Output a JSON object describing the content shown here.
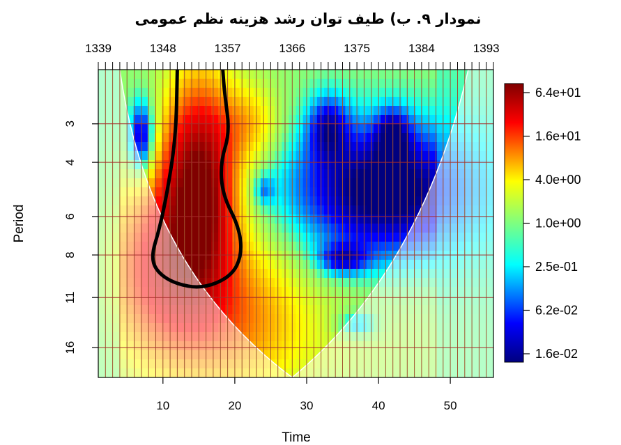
{
  "chart_data": {
    "type": "heatmap",
    "title": "نمودار ۹. ب) طیف توان رشد هزینه نظم عمومی",
    "xlabel": "Time",
    "ylabel": "Period",
    "x_ticks": [
      10,
      20,
      30,
      40,
      50
    ],
    "x_range": [
      1,
      56
    ],
    "top_ticks": [
      "1339",
      "1348",
      "1357",
      "1366",
      "1375",
      "1384",
      "1393"
    ],
    "top_tick_x": [
      1,
      10,
      19,
      28,
      37,
      46,
      55
    ],
    "y_ticks": [
      "3",
      "4",
      "6",
      "8",
      "11",
      "16"
    ],
    "y_tick_values": [
      3,
      4,
      6,
      8,
      11,
      16
    ],
    "y_range": [
      2,
      20
    ],
    "y_scale": "log2-reversed",
    "legend_labels": [
      "6.4e+01",
      "1.6e+01",
      "4.0e+00",
      "1.0e+00",
      "2.5e-01",
      "6.2e-02",
      "1.6e-02"
    ],
    "grid": true,
    "colormap": [
      "#800000",
      "#ff0000",
      "#ffff00",
      "#7fff7f",
      "#00ffff",
      "#0000ff",
      "#00007f"
    ],
    "cone_of_influence": true,
    "significance_contour": true
  }
}
